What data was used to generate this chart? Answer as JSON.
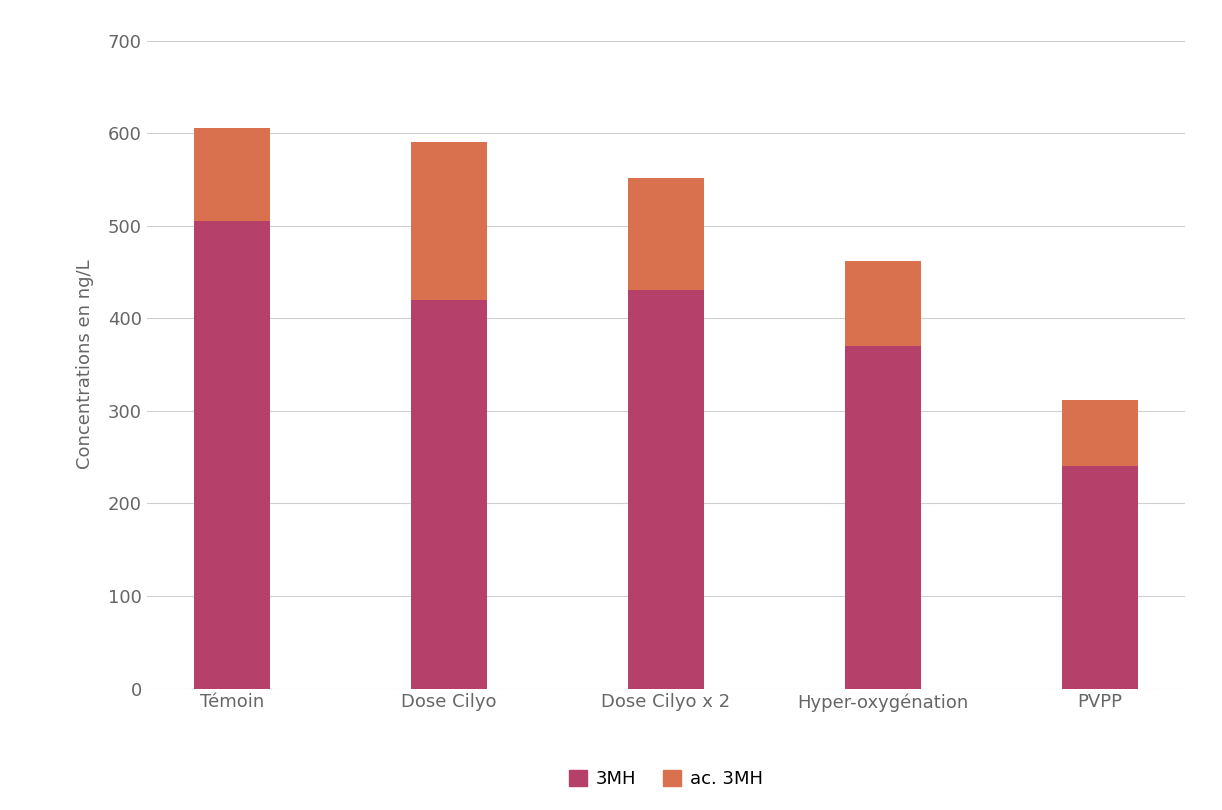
{
  "categories": [
    "Témoin",
    "Dose Cilyo",
    "Dose Cilyo x 2",
    "Hyper-oxygénation",
    "PVPP"
  ],
  "values_3MH": [
    505,
    420,
    430,
    370,
    240
  ],
  "values_ac3MH": [
    100,
    170,
    122,
    92,
    72
  ],
  "color_3MH": "#b5416a",
  "color_ac3MH": "#d9714e",
  "ylabel": "Concentrations en ng/L",
  "ylim": [
    0,
    700
  ],
  "yticks": [
    0,
    100,
    200,
    300,
    400,
    500,
    600,
    700
  ],
  "legend_3MH": "3MH",
  "legend_ac3MH": "ac. 3MH",
  "bar_width": 0.35,
  "background_color": "#ffffff",
  "grid_color": "#d0d0d0",
  "tick_color": "#666666",
  "ylabel_color": "#666666",
  "ylabel_fontsize": 13,
  "tick_fontsize": 13,
  "xtick_fontsize": 13
}
